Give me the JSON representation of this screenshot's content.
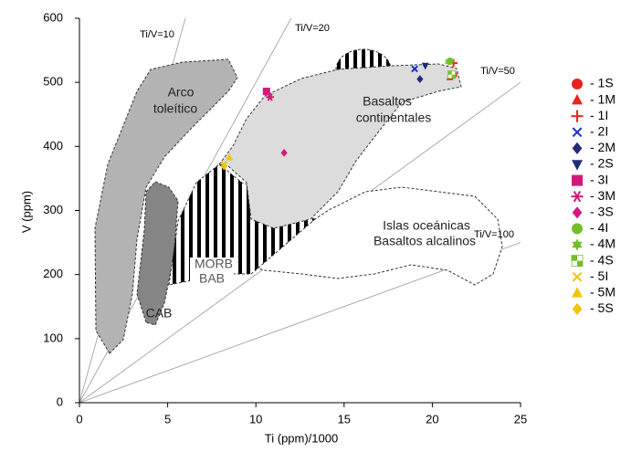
{
  "chart_data": {
    "type": "scatter",
    "x_label": "Ti (ppm)/1000",
    "y_label": "V (ppm)",
    "xlim": [
      0,
      25
    ],
    "ylim": [
      0,
      600
    ],
    "xticks": [
      0,
      5,
      10,
      15,
      20,
      25
    ],
    "yticks": [
      0,
      100,
      200,
      300,
      400,
      500,
      600
    ],
    "ratio_lines": [
      {
        "label": "Ti/V=10",
        "ratio": 10
      },
      {
        "label": "Ti/V=20",
        "ratio": 20
      },
      {
        "label": "Ti/V=50",
        "ratio": 50
      },
      {
        "label": "Ti/V=100",
        "ratio": 100
      }
    ],
    "fields": [
      {
        "lines": [
          "Arco",
          "toleítico"
        ]
      },
      {
        "lines": [
          "Basaltos",
          "continentales"
        ]
      },
      {
        "lines": [
          "Islas oceánicas",
          "Basaltos alcalinos"
        ]
      },
      {
        "lines": [
          "MORB",
          "BAB"
        ]
      },
      {
        "lines": [
          "CAB"
        ]
      }
    ],
    "legend": "right",
    "series": [
      {
        "name": "- 1S",
        "color": "#e8231f",
        "marker": "circle",
        "x": [
          21.2
        ],
        "values": [
          512
        ]
      },
      {
        "name": "- 1M",
        "color": "#e8231f",
        "marker": "triangle",
        "x": [
          21.0
        ],
        "values": [
          508
        ]
      },
      {
        "name": "- 1I",
        "color": "#e8231f",
        "marker": "plus",
        "x": [
          21.2
        ],
        "values": [
          530
        ]
      },
      {
        "name": "- 2I",
        "color": "#1c2fd6",
        "marker": "x",
        "x": [
          19.0
        ],
        "values": [
          521
        ]
      },
      {
        "name": "- 2M",
        "color": "#232a7a",
        "marker": "diamond",
        "x": [
          19.3
        ],
        "values": [
          505
        ]
      },
      {
        "name": "- 2S",
        "color": "#232a7a",
        "marker": "triangle-down",
        "x": [
          19.6
        ],
        "values": [
          526
        ]
      },
      {
        "name": "- 3I",
        "color": "#d4197a",
        "marker": "square",
        "x": [
          10.6
        ],
        "values": [
          486
        ]
      },
      {
        "name": "- 3M",
        "color": "#d4197a",
        "marker": "asterisk",
        "x": [
          10.8
        ],
        "values": [
          477
        ]
      },
      {
        "name": "- 3S",
        "color": "#d4197a",
        "marker": "diamond",
        "x": [
          11.6
        ],
        "values": [
          390
        ]
      },
      {
        "name": "- 4I",
        "color": "#72bf2a",
        "marker": "circle",
        "x": [
          21.0
        ],
        "values": [
          533
        ]
      },
      {
        "name": "- 4M",
        "color": "#72bf2a",
        "marker": "star",
        "x": [
          20.9
        ],
        "values": [
          532
        ]
      },
      {
        "name": "- 4S",
        "color": "#72bf2a",
        "marker": "checker",
        "x": [
          21.1
        ],
        "values": [
          512
        ]
      },
      {
        "name": "- 5I",
        "color": "#f2c40f",
        "marker": "x",
        "x": [
          8.2
        ],
        "values": [
          372
        ]
      },
      {
        "name": "- 5M",
        "color": "#f2c40f",
        "marker": "triangle",
        "x": [
          8.5
        ],
        "values": [
          383
        ]
      },
      {
        "name": "- 5S",
        "color": "#f2c40f",
        "marker": "diamond",
        "x": [
          8.2
        ],
        "values": [
          369
        ]
      }
    ]
  }
}
